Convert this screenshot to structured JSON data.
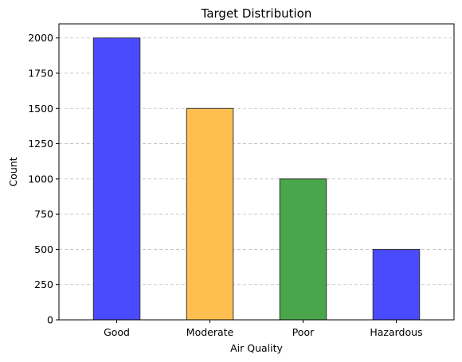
{
  "chart_data": {
    "type": "bar",
    "title": "Target Distribution",
    "xlabel": "Air Quality",
    "ylabel": "Count",
    "categories": [
      "Good",
      "Moderate",
      "Poor",
      "Hazardous"
    ],
    "values": [
      2000,
      1500,
      1000,
      500
    ],
    "bar_colors": [
      "#4a4aff",
      "#ffbf50",
      "#4aa64a",
      "#4a4aff"
    ],
    "edge_color": "#333333",
    "ylim": [
      0,
      2100
    ],
    "yticks": [
      0,
      250,
      500,
      750,
      1000,
      1250,
      1500,
      1750,
      2000
    ],
    "grid": "y-dashed",
    "legend": "none"
  }
}
